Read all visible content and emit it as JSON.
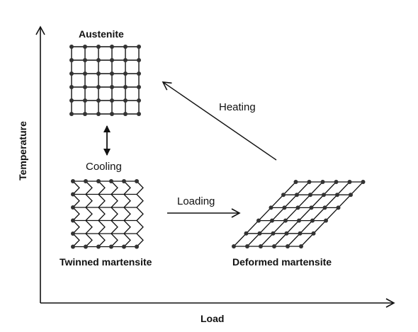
{
  "labels": {
    "austenite": "Austenite",
    "cooling": "Cooling",
    "loading": "Loading",
    "heating": "Heating",
    "twinned": "Twinned martensite",
    "deformed": "Deformed martensite",
    "x_axis": "Load",
    "y_axis": "Temperature"
  },
  "colors": {
    "line": "#111111",
    "atom": "#333333"
  },
  "lattices": {
    "austenite": {
      "rows": 6,
      "cols": 6,
      "type": "square"
    },
    "twinned": {
      "rows": 6,
      "cols": 5,
      "type": "zigzag"
    },
    "deformed": {
      "rows": 6,
      "cols": 6,
      "type": "sheared"
    }
  }
}
